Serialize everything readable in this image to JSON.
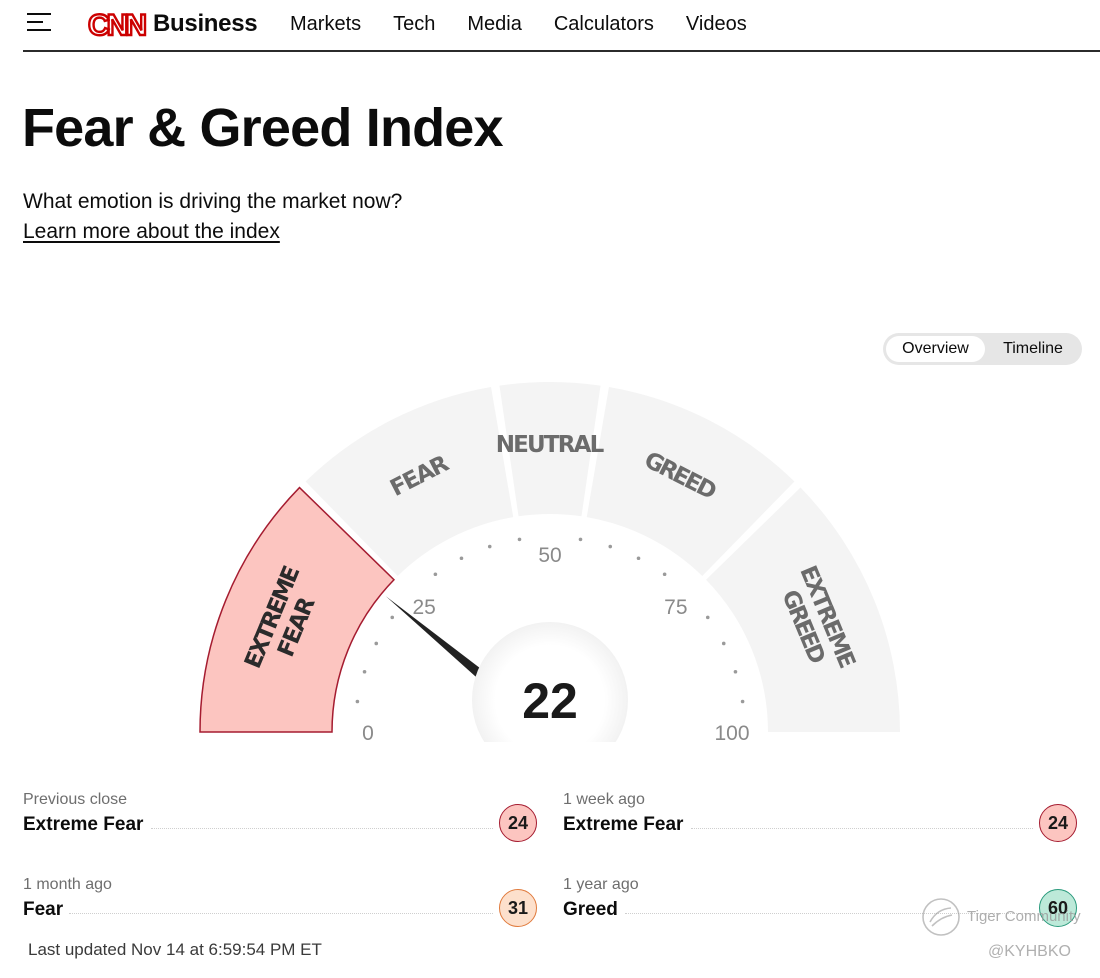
{
  "header": {
    "logo_text": "CNN",
    "brand": "Business",
    "nav": [
      "Markets",
      "Tech",
      "Media",
      "Calculators",
      "Videos"
    ]
  },
  "page": {
    "title": "Fear & Greed Index",
    "subtitle": "What emotion is driving the market now?",
    "learn_link": "Learn more about the index"
  },
  "view_toggle": {
    "options": [
      "Overview",
      "Timeline"
    ],
    "selected": "Overview"
  },
  "gauge": {
    "value": 22,
    "value_label": "22",
    "range": [
      0,
      100
    ],
    "ticks": [
      "0",
      "25",
      "50",
      "75",
      "100"
    ],
    "segments": [
      {
        "label_lines": [
          "EXTREME",
          "FEAR"
        ],
        "from": 0,
        "to": 25,
        "active": true
      },
      {
        "label_lines": [
          "FEAR"
        ],
        "from": 25,
        "to": 45,
        "active": false
      },
      {
        "label_lines": [
          "NEUTRAL"
        ],
        "from": 45,
        "to": 55,
        "active": false
      },
      {
        "label_lines": [
          "GREED"
        ],
        "from": 55,
        "to": 75,
        "active": false
      },
      {
        "label_lines": [
          "EXTREME",
          "GREED"
        ],
        "from": 75,
        "to": 100,
        "active": false
      }
    ],
    "colors": {
      "inactive_fill": "#f4f4f4",
      "active_fill": "#fcc5c0",
      "active_stroke": "#a51c30",
      "inactive_text": "#6b6b6b",
      "active_text": "#2b2b2b",
      "needle": "#222222",
      "tick_dot": "#9a9a9a",
      "tick_text": "#8a8a8a"
    }
  },
  "history": [
    {
      "label": "Previous close",
      "status": "Extreme Fear",
      "value": "24",
      "bg": "#fcc5c0",
      "border": "#a51c30"
    },
    {
      "label": "1 week ago",
      "status": "Extreme Fear",
      "value": "24",
      "bg": "#fcc5c0",
      "border": "#a51c30"
    },
    {
      "label": "1 month ago",
      "status": "Fear",
      "value": "31",
      "bg": "#fde0cc",
      "border": "#e07a3c"
    },
    {
      "label": "1 year ago",
      "status": "Greed",
      "value": "60",
      "bg": "#bde9d9",
      "border": "#2a9a7c"
    }
  ],
  "last_updated": "Last updated Nov 14 at 6:59:54 PM ET",
  "watermark": {
    "text": "Tiger Community",
    "handle": "@KYHBKO"
  }
}
